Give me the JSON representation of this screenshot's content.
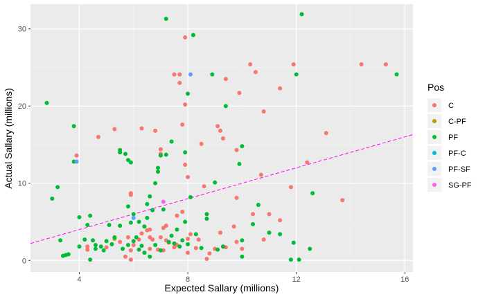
{
  "chart_data": {
    "type": "scatter",
    "xlabel": "Expected Sallary (millions)",
    "ylabel": "Actual Sallary (millions)",
    "xlim": [
      2.2,
      16.3
    ],
    "ylim": [
      -1.5,
      33.2
    ],
    "xticks": [
      4,
      8,
      12,
      16
    ],
    "yticks": [
      0,
      10,
      20,
      30
    ],
    "grid": true,
    "legend": {
      "title": "Pos",
      "position": "right"
    },
    "reference_line": {
      "style": "dashed",
      "color": "#ff00ff",
      "x": [
        2.2,
        16.3
      ],
      "y": [
        2.2,
        16.3
      ]
    },
    "series": [
      {
        "name": "C",
        "color": "#F8766D",
        "points": [
          [
            3.9,
            13.6
          ],
          [
            4.7,
            16.0
          ],
          [
            5.3,
            17.0
          ],
          [
            5.9,
            8.5
          ],
          [
            5.9,
            8.7
          ],
          [
            6.3,
            17.1
          ],
          [
            6.8,
            16.8
          ],
          [
            7.0,
            13.8
          ],
          [
            7.0,
            14.4
          ],
          [
            7.5,
            24.1
          ],
          [
            7.7,
            24.1
          ],
          [
            7.7,
            23.0
          ],
          [
            7.8,
            17.6
          ],
          [
            7.9,
            28.9
          ],
          [
            7.9,
            20.2
          ],
          [
            7.9,
            12.4
          ],
          [
            8.0,
            10.8
          ],
          [
            8.5,
            15.1
          ],
          [
            8.6,
            9.6
          ],
          [
            9.1,
            17.4
          ],
          [
            9.2,
            16.8
          ],
          [
            9.3,
            15.8
          ],
          [
            9.4,
            23.5
          ],
          [
            9.8,
            14.3
          ],
          [
            9.9,
            21.7
          ],
          [
            10.3,
            25.4
          ],
          [
            10.5,
            24.4
          ],
          [
            10.7,
            11.1
          ],
          [
            10.8,
            19.3
          ],
          [
            11.4,
            22.3
          ],
          [
            11.8,
            9.5
          ],
          [
            11.9,
            25.4
          ],
          [
            12.4,
            12.7
          ],
          [
            13.1,
            16.5
          ],
          [
            14.4,
            25.4
          ],
          [
            15.3,
            25.4
          ],
          [
            13.7,
            7.8
          ],
          [
            9.8,
            8.1
          ],
          [
            10.4,
            6.0
          ],
          [
            11.0,
            6.0
          ],
          [
            10.8,
            2.7
          ],
          [
            11.4,
            5.2
          ],
          [
            7.8,
            6.3
          ],
          [
            7.6,
            5.8
          ],
          [
            7.2,
            4.5
          ],
          [
            7.1,
            4.2
          ],
          [
            7.2,
            2.6
          ],
          [
            6.7,
            2.7
          ],
          [
            6.5,
            3.9
          ],
          [
            6.3,
            3.5
          ],
          [
            6.2,
            2.7
          ],
          [
            6.0,
            2.0
          ],
          [
            5.9,
            1.3
          ],
          [
            5.5,
            2.4
          ],
          [
            5.7,
            0.5
          ],
          [
            4.3,
            1.4
          ],
          [
            4.3,
            1.8
          ],
          [
            5.0,
            1.7
          ],
          [
            5.9,
            0.1
          ],
          [
            6.6,
            1.5
          ],
          [
            6.6,
            4.0
          ],
          [
            7.0,
            3.0
          ],
          [
            7.3,
            2.3
          ],
          [
            7.6,
            2.0
          ],
          [
            8.0,
            1.0
          ],
          [
            8.3,
            1.6
          ],
          [
            8.7,
            0.2
          ],
          [
            9.0,
            1.5
          ],
          [
            9.2,
            3.6
          ],
          [
            9.3,
            1.8
          ],
          [
            9.7,
            4.4
          ],
          [
            9.8,
            2.4
          ],
          [
            10.0,
            1.5
          ],
          [
            8.0,
            2.8
          ],
          [
            8.8,
            0.9
          ],
          [
            6.6,
            3.0
          ],
          [
            6.9,
            1.4
          ],
          [
            5.8,
            3.0
          ],
          [
            7.1,
            1.3
          ],
          [
            9.4,
            1.7
          ],
          [
            8.4,
            2.7
          ],
          [
            8.1,
            3.4
          ],
          [
            7.5,
            1.7
          ]
        ]
      },
      {
        "name": "C-PF",
        "color": "#B79F00",
        "points": [
          [
            5.3,
            2.8
          ]
        ]
      },
      {
        "name": "PF",
        "color": "#00BA38",
        "points": [
          [
            2.8,
            20.4
          ],
          [
            3.0,
            8.0
          ],
          [
            3.2,
            9.5
          ],
          [
            3.3,
            2.6
          ],
          [
            3.4,
            0.6
          ],
          [
            3.5,
            0.7
          ],
          [
            3.6,
            0.8
          ],
          [
            3.8,
            17.4
          ],
          [
            3.8,
            12.8
          ],
          [
            4.0,
            5.6
          ],
          [
            4.2,
            2.7
          ],
          [
            4.3,
            4.6
          ],
          [
            4.4,
            5.8
          ],
          [
            4.4,
            0.1
          ],
          [
            4.6,
            2.0
          ],
          [
            4.6,
            1.5
          ],
          [
            4.8,
            1.8
          ],
          [
            5.1,
            4.6
          ],
          [
            5.3,
            3.0
          ],
          [
            5.5,
            4.5
          ],
          [
            5.5,
            14.0
          ],
          [
            5.5,
            14.3
          ],
          [
            5.7,
            13.8
          ],
          [
            5.8,
            13.0
          ],
          [
            5.9,
            12.7
          ],
          [
            5.8,
            7.0
          ],
          [
            5.9,
            4.9
          ],
          [
            6.0,
            6.0
          ],
          [
            6.0,
            2.5
          ],
          [
            6.2,
            1.4
          ],
          [
            6.3,
            1.9
          ],
          [
            6.4,
            4.4
          ],
          [
            6.5,
            5.5
          ],
          [
            6.5,
            7.3
          ],
          [
            6.6,
            8.3
          ],
          [
            6.7,
            6.5
          ],
          [
            6.8,
            10.0
          ],
          [
            6.9,
            11.5
          ],
          [
            6.9,
            12.0
          ],
          [
            7.0,
            13.6
          ],
          [
            7.1,
            6.6
          ],
          [
            7.2,
            31.3
          ],
          [
            7.2,
            13.7
          ],
          [
            7.4,
            15.4
          ],
          [
            7.3,
            2.4
          ],
          [
            7.5,
            2.2
          ],
          [
            7.6,
            4.0
          ],
          [
            7.7,
            1.8
          ],
          [
            7.9,
            5.0
          ],
          [
            7.9,
            14.0
          ],
          [
            8.0,
            21.6
          ],
          [
            8.1,
            8.2
          ],
          [
            8.2,
            29.2
          ],
          [
            8.3,
            3.4
          ],
          [
            8.5,
            1.6
          ],
          [
            8.7,
            5.4
          ],
          [
            8.7,
            6.0
          ],
          [
            8.9,
            24.1
          ],
          [
            9.0,
            10.1
          ],
          [
            9.1,
            1.4
          ],
          [
            9.3,
            1.8
          ],
          [
            9.4,
            20.0
          ],
          [
            9.9,
            12.5
          ],
          [
            10.0,
            14.8
          ],
          [
            10.0,
            0.5
          ],
          [
            10.0,
            2.6
          ],
          [
            10.4,
            4.7
          ],
          [
            10.6,
            7.2
          ],
          [
            11.0,
            3.6
          ],
          [
            11.4,
            3.4
          ],
          [
            11.8,
            0.1
          ],
          [
            11.9,
            2.3
          ],
          [
            12.0,
            24.1
          ],
          [
            12.1,
            0.1
          ],
          [
            12.2,
            31.9
          ],
          [
            12.5,
            1.5
          ],
          [
            12.6,
            8.7
          ],
          [
            15.7,
            24.1
          ],
          [
            5.0,
            2.5
          ],
          [
            5.6,
            1.5
          ],
          [
            5.8,
            2.0
          ],
          [
            6.1,
            3.0
          ],
          [
            6.4,
            1.0
          ],
          [
            6.6,
            0.5
          ],
          [
            6.8,
            2.0
          ],
          [
            7.0,
            1.3
          ],
          [
            7.4,
            3.2
          ],
          [
            7.8,
            2.6
          ],
          [
            8.0,
            2.1
          ],
          [
            4.9,
            1.3
          ],
          [
            5.2,
            2.1
          ],
          [
            4.5,
            2.6
          ],
          [
            4.0,
            1.8
          ],
          [
            6.2,
            5.0
          ]
        ]
      },
      {
        "name": "PF-C",
        "color": "#00BFC4",
        "points": []
      },
      {
        "name": "PF-SF",
        "color": "#619CFF",
        "points": [
          [
            3.9,
            12.8
          ],
          [
            8.1,
            24.1
          ],
          [
            6.0,
            5.5
          ]
        ]
      },
      {
        "name": "SG-PF",
        "color": "#F564E3",
        "points": [
          [
            7.1,
            7.6
          ]
        ]
      }
    ]
  }
}
